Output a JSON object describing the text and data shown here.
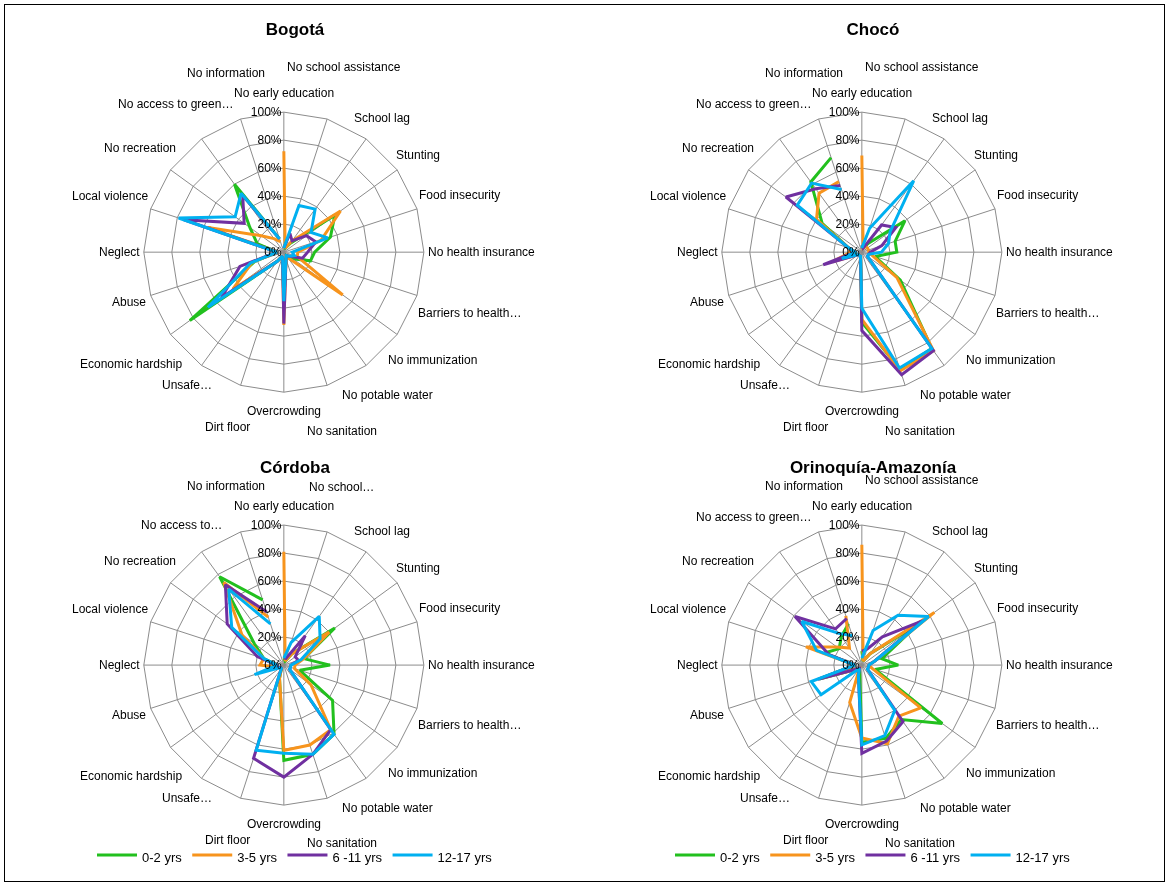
{
  "chart_data": [
    {
      "type": "radar",
      "title": "Bogotá",
      "legend": false,
      "grid": true,
      "categories": [
        "No early education",
        "No school assistance",
        "School lag",
        "Stunting",
        "Food insecurity",
        "No health insurance",
        "Barriers to health…",
        "No immunization",
        "No potable water",
        "No sanitation",
        "Overcrowding",
        "Dirt floor",
        "Unsafe…",
        "Economic hardship",
        "Abuse",
        "Neglect",
        "Local violence",
        "No recreation",
        "No access to green…",
        "No information"
      ],
      "ylim": [
        0,
        100
      ],
      "yticks": [
        {
          "value": 0,
          "label": "0%"
        },
        {
          "value": 20,
          "label": "20%"
        },
        {
          "value": 40,
          "label": "40%"
        },
        {
          "value": 60,
          "label": "60%"
        },
        {
          "value": 80,
          "label": "80%"
        },
        {
          "value": 100,
          "label": "100%"
        }
      ],
      "series": [
        {
          "color": "#22c01e",
          "values": [
            3,
            3,
            8,
            45,
            35,
            22,
            20,
            8,
            3,
            5,
            35,
            3,
            8,
            83,
            22,
            5,
            20,
            30,
            60,
            10
          ]
        },
        {
          "color": "#f7941d",
          "values": [
            72,
            3,
            10,
            50,
            28,
            10,
            10,
            52,
            5,
            5,
            52,
            3,
            8,
            45,
            24,
            5,
            57,
            20,
            12,
            8
          ]
        },
        {
          "color": "#7030a0",
          "values": [
            3,
            14,
            10,
            20,
            24,
            17,
            14,
            5,
            3,
            5,
            51,
            3,
            8,
            55,
            33,
            5,
            75,
            35,
            50,
            10
          ]
        },
        {
          "color": "#00b0f0",
          "values": [
            3,
            35,
            38,
            24,
            33,
            6,
            8,
            5,
            3,
            5,
            35,
            3,
            8,
            67,
            25,
            5,
            79,
            43,
            52,
            10
          ]
        }
      ]
    },
    {
      "type": "radar",
      "title": "Chocó",
      "legend": false,
      "grid": true,
      "categories": [
        "No early education",
        "No school assistance",
        "School lag",
        "Stunting",
        "Food insecurity",
        "No health insurance",
        "Barriers to health…",
        "No immunization",
        "No potable water",
        "No sanitation",
        "Overcrowding",
        "Dirt floor",
        "Unsafe…",
        "Economic hardship",
        "Abuse",
        "Neglect",
        "Local violence",
        "No recreation",
        "No access to green…",
        "No information"
      ],
      "ylim": [
        0,
        100
      ],
      "yticks": [
        {
          "value": 0,
          "label": "0%"
        },
        {
          "value": 20,
          "label": "20%"
        },
        {
          "value": 40,
          "label": "40%"
        },
        {
          "value": 60,
          "label": "60%"
        },
        {
          "value": 80,
          "label": "80%"
        },
        {
          "value": 100,
          "label": "100%"
        }
      ],
      "series": [
        {
          "color": "#22c01e",
          "values": [
            5,
            3,
            8,
            38,
            25,
            25,
            10,
            34,
            85,
            88,
            50,
            3,
            3,
            3,
            5,
            5,
            10,
            35,
            62,
            71
          ]
        },
        {
          "color": "#f7941d",
          "values": [
            69,
            3,
            5,
            5,
            5,
            5,
            8,
            31,
            87,
            89,
            48,
            3,
            3,
            3,
            22,
            8,
            10,
            40,
            52,
            53
          ]
        },
        {
          "color": "#7030a0",
          "values": [
            5,
            3,
            24,
            30,
            15,
            6,
            5,
            5,
            87,
            92,
            56,
            3,
            3,
            3,
            29,
            5,
            10,
            67,
            56,
            50
          ]
        },
        {
          "color": "#00b0f0",
          "values": [
            3,
            18,
            63,
            25,
            20,
            14,
            5,
            5,
            85,
            87,
            40,
            3,
            3,
            3,
            15,
            5,
            10,
            57,
            61,
            47
          ]
        }
      ]
    },
    {
      "type": "radar",
      "title": "Córdoba",
      "legend": "bottom",
      "grid": true,
      "categories": [
        "No early education",
        "No school…",
        "School lag",
        "Stunting",
        "Food insecurity",
        "No health insurance",
        "Barriers to health…",
        "No immunization",
        "No potable water",
        "No sanitation",
        "Overcrowding",
        "Dirt floor",
        "Unsafe…",
        "Economic hardship",
        "Abuse",
        "Neglect",
        "Local violence",
        "No recreation",
        "No access to…",
        "No information"
      ],
      "ylim": [
        0,
        100
      ],
      "yticks": [
        {
          "value": 0,
          "label": "0%"
        },
        {
          "value": 20,
          "label": "20%"
        },
        {
          "value": 40,
          "label": "40%"
        },
        {
          "value": 60,
          "label": "60%"
        },
        {
          "value": 80,
          "label": "80%"
        },
        {
          "value": 100,
          "label": "100%"
        }
      ],
      "series": [
        {
          "name": "0-2 yrs",
          "color": "#22c01e",
          "values": [
            5,
            3,
            10,
            45,
            15,
            33,
            12,
            43,
            61,
            67,
            68,
            10,
            3,
            3,
            5,
            5,
            15,
            26,
            78,
            49
          ]
        },
        {
          "name": "3-5 yrs",
          "color": "#f7941d",
          "values": [
            81,
            3,
            10,
            40,
            15,
            8,
            8,
            24,
            57,
            60,
            61,
            10,
            3,
            3,
            5,
            17,
            15,
            37,
            73,
            36
          ]
        },
        {
          "name": "6 -11 yrs",
          "color": "#7030a0",
          "values": [
            5,
            5,
            26,
            10,
            11,
            5,
            5,
            5,
            57,
            67,
            80,
            70,
            3,
            3,
            5,
            5,
            20,
            50,
            71,
            40
          ]
        },
        {
          "name": "12-17 yrs",
          "color": "#00b0f0",
          "values": [
            5,
            17,
            43,
            32,
            13,
            5,
            5,
            5,
            61,
            67,
            63,
            64,
            3,
            3,
            22,
            5,
            15,
            46,
            67,
            31
          ]
        }
      ]
    },
    {
      "type": "radar",
      "title": "Orinoquía-Amazonía",
      "legend": "bottom",
      "grid": true,
      "categories": [
        "No early education",
        "No school assistance",
        "School lag",
        "Stunting",
        "Food insecurity",
        "No health insurance",
        "Barriers to health…",
        "No immunization",
        "No potable water",
        "No sanitation",
        "Overcrowding",
        "Dirt floor",
        "Unsafe…",
        "Economic hardship",
        "Abuse",
        "Neglect",
        "Local violence",
        "No recreation",
        "No access to green…",
        "No information"
      ],
      "ylim": [
        0,
        100
      ],
      "yticks": [
        {
          "value": 0,
          "label": "0%"
        },
        {
          "value": 20,
          "label": "20%"
        },
        {
          "value": 40,
          "label": "40%"
        },
        {
          "value": 60,
          "label": "60%"
        },
        {
          "value": 80,
          "label": "80%"
        },
        {
          "value": 100,
          "label": "100%"
        }
      ],
      "series": [
        {
          "name": "0-2 yrs",
          "color": "#22c01e",
          "values": [
            10,
            3,
            10,
            50,
            15,
            26,
            10,
            71,
            48,
            55,
            55,
            5,
            3,
            5,
            32,
            5,
            28,
            20,
            25,
            31
          ]
        },
        {
          "name": "3-5 yrs",
          "color": "#f7941d",
          "values": [
            86,
            3,
            10,
            64,
            10,
            5,
            8,
            52,
            45,
            59,
            52,
            28,
            3,
            5,
            30,
            5,
            42,
            22,
            15,
            37
          ]
        },
        {
          "name": "6 -11 yrs",
          "color": "#7030a0",
          "values": [
            10,
            12,
            25,
            54,
            10,
            5,
            5,
            5,
            50,
            57,
            63,
            8,
            3,
            5,
            33,
            5,
            25,
            59,
            32,
            35
          ]
        },
        {
          "name": "12-17 yrs",
          "color": "#00b0f0",
          "values": [
            5,
            26,
            44,
            59,
            10,
            5,
            5,
            5,
            40,
            53,
            57,
            8,
            3,
            36,
            38,
            5,
            34,
            53,
            28,
            22
          ]
        }
      ]
    }
  ]
}
